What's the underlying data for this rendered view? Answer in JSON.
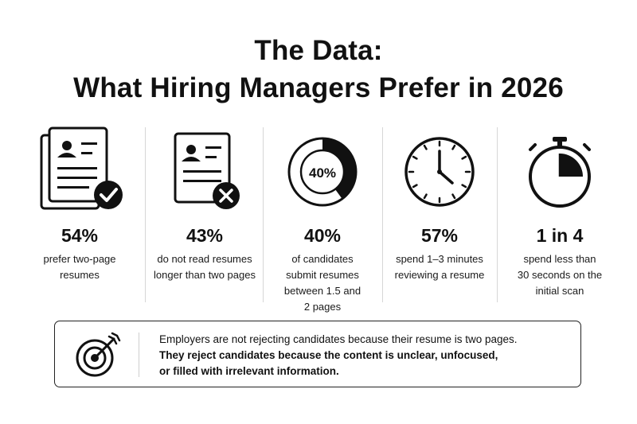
{
  "title": {
    "line1": "The Data:",
    "line2": "What Hiring Managers Prefer in 2026"
  },
  "stats": [
    {
      "icon": "resume-check-icon",
      "value": "54%",
      "desc": [
        "prefer two-page",
        "resumes"
      ]
    },
    {
      "icon": "resume-x-icon",
      "value": "43%",
      "desc": [
        "do not read resumes",
        "longer than two pages"
      ]
    },
    {
      "icon": "donut-chart-icon",
      "icon_label": "40%",
      "fill_fraction": 0.4,
      "value": "40%",
      "desc": [
        "of candidates",
        "submit resumes",
        "between 1.5 and",
        "2 pages"
      ]
    },
    {
      "icon": "clock-icon",
      "value": "57%",
      "desc": [
        "spend 1–3 minutes",
        "reviewing a resume"
      ]
    },
    {
      "icon": "stopwatch-icon",
      "value": "1 in 4",
      "desc": [
        "spend less than",
        "30 seconds on the",
        "initial scan"
      ]
    }
  ],
  "callout": {
    "icon": "target-icon",
    "line1": "Employers are not rejecting candidates because their resume is two pages.",
    "line2": "They reject candidates because the content is unclear, unfocused,",
    "line3": "or filled with irrelevant information."
  },
  "colors": {
    "ink": "#111111",
    "separator": "#d6d6d6"
  }
}
